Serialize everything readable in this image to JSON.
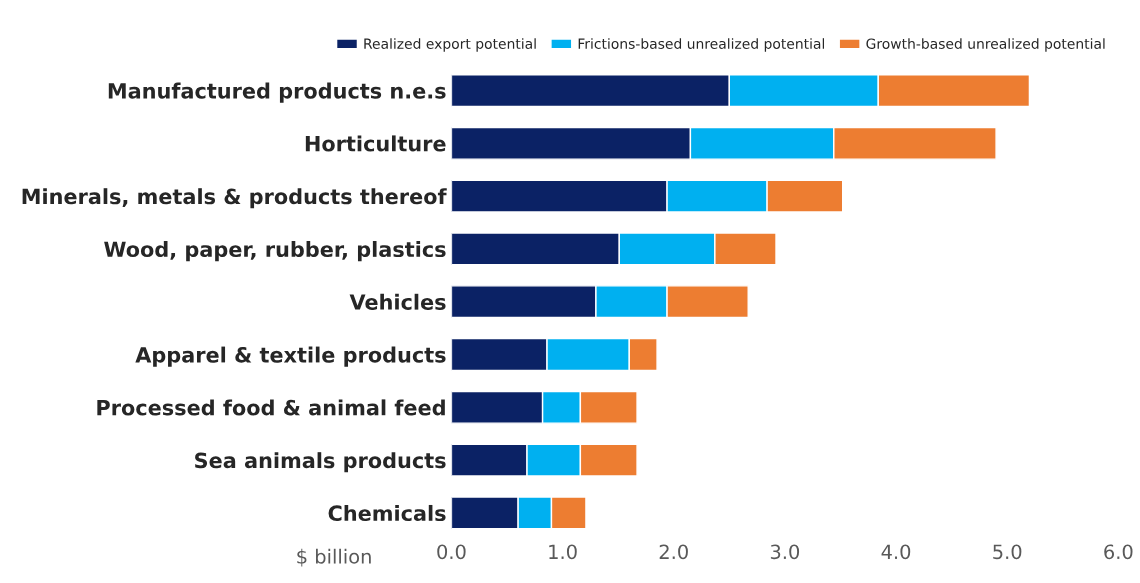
{
  "chart_data": {
    "type": "bar",
    "orientation": "horizontal",
    "stacked": true,
    "xlabel": "$ billion",
    "categories": [
      "Manufactured products n.e.s",
      "Horticulture",
      "Minerals, metals & products thereof",
      "Wood, paper, rubber, plastics",
      "Vehicles",
      "Apparel & textile products",
      "Processed food & animal feed",
      "Sea animals products",
      "Chemicals"
    ],
    "series": [
      {
        "name": "Realized export potential",
        "color": "#0b2265",
        "values": [
          2.5,
          2.15,
          1.94,
          1.51,
          1.3,
          0.86,
          0.82,
          0.68,
          0.6
        ]
      },
      {
        "name": "Frictions-based unrealized potential",
        "color": "#00b0f0",
        "values": [
          1.34,
          1.29,
          0.9,
          0.86,
          0.64,
          0.74,
          0.34,
          0.48,
          0.3
        ]
      },
      {
        "name": "Growth-based unrealized potential",
        "color": "#ed7d31",
        "values": [
          1.36,
          1.46,
          0.68,
          0.55,
          0.73,
          0.25,
          0.51,
          0.51,
          0.31
        ]
      }
    ],
    "xlim": [
      0,
      6
    ],
    "xticks": [
      {
        "value": 0,
        "label": "0.0"
      },
      {
        "value": 1,
        "label": "1.0"
      },
      {
        "value": 2,
        "label": "2.0"
      },
      {
        "value": 3,
        "label": "3.0"
      },
      {
        "value": 4,
        "label": "4.0"
      },
      {
        "value": 5,
        "label": "5.0"
      },
      {
        "value": 6,
        "label": "6.0"
      }
    ],
    "grid": false,
    "legend": "top"
  }
}
